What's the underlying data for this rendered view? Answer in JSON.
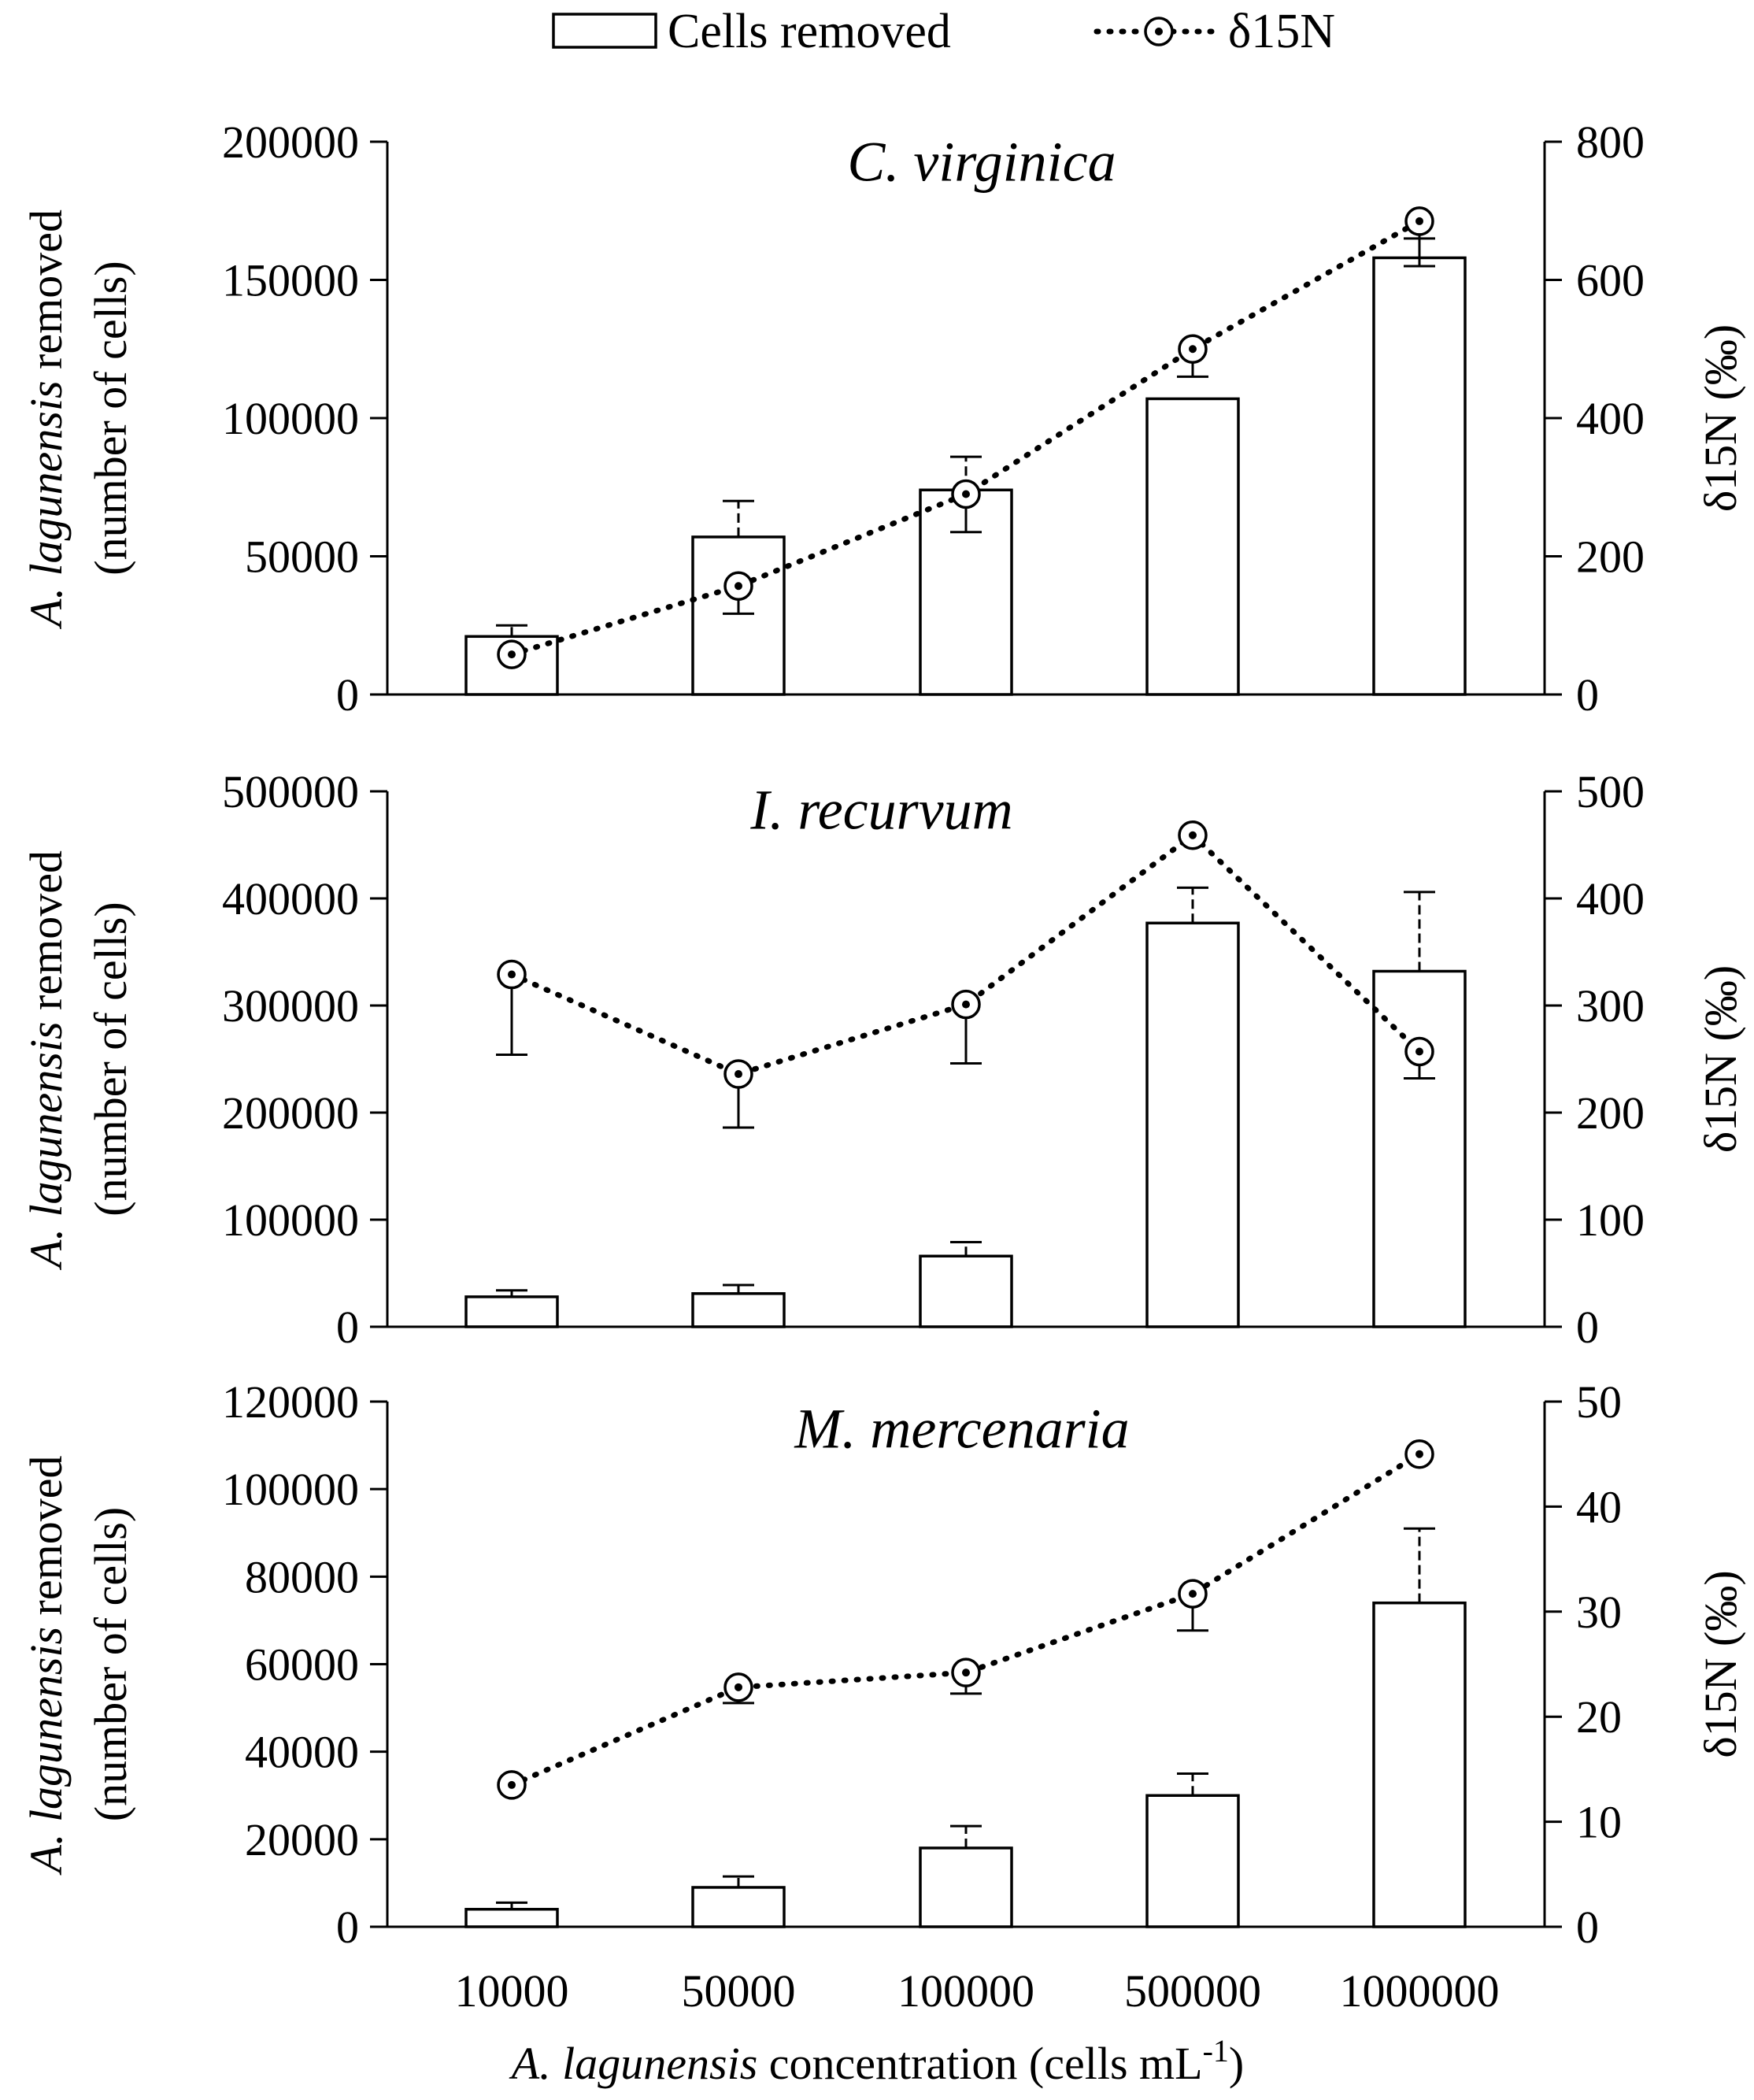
{
  "chart_data": {
    "type": "bar",
    "legend": {
      "position": "top-center",
      "entries": [
        {
          "id": "bars",
          "label": "Cells removed",
          "kind": "bar"
        },
        {
          "id": "line",
          "label": "δ15N",
          "kind": "dotted-line-circle"
        }
      ]
    },
    "categories": [
      "10000",
      "50000",
      "100000",
      "500000",
      "1000000"
    ],
    "xlabel": {
      "italic": "A. lagunensis",
      "plain": " concentration (cells mL",
      "sup": "-1",
      "close": ")"
    },
    "ylabel_left": {
      "italic": "A. lagunensis",
      "plain": " removed",
      "line2": "(number of cells)"
    },
    "ylabel_right": "δ15N (‰)",
    "panels": [
      {
        "title": "C. virginica",
        "left_ticks": [
          "0",
          "50000",
          "100000",
          "150000",
          "200000"
        ],
        "left_ylim": [
          0,
          200000
        ],
        "right_ticks": [
          "0",
          "200",
          "400",
          "600",
          "800"
        ],
        "right_ylim": [
          0,
          800
        ],
        "series": [
          {
            "name": "Cells removed",
            "values": [
              21000,
              57000,
              74000,
              107000,
              158000
            ],
            "error": [
              4000,
              13000,
              12000,
              0,
              7000
            ]
          },
          {
            "name": "δ15N",
            "values": [
              58,
              157,
              290,
              500,
              685
            ],
            "error": [
              0,
              40,
              55,
              40,
              65
            ]
          }
        ]
      },
      {
        "title": "I. recurvum",
        "left_ticks": [
          "0",
          "100000",
          "200000",
          "300000",
          "400000",
          "500000"
        ],
        "left_ylim": [
          0,
          500000
        ],
        "right_ticks": [
          "0",
          "100",
          "200",
          "300",
          "400",
          "500"
        ],
        "right_ylim": [
          0,
          500
        ],
        "series": [
          {
            "name": "Cells removed",
            "values": [
              28000,
              31000,
              66000,
              377000,
              332000
            ],
            "error": [
              6000,
              8000,
              13000,
              33000,
              74000
            ]
          },
          {
            "name": "δ15N",
            "values": [
              329,
              236,
              301,
              459,
              257
            ],
            "error": [
              75,
              50,
              55,
              0,
              25
            ]
          }
        ]
      },
      {
        "title": "M. mercenaria",
        "left_ticks": [
          "0",
          "20000",
          "40000",
          "60000",
          "80000",
          "100000",
          "120000"
        ],
        "left_ylim": [
          0,
          120000
        ],
        "right_ticks": [
          "0",
          "10",
          "20",
          "30",
          "40",
          "50"
        ],
        "right_ylim": [
          0,
          50
        ],
        "series": [
          {
            "name": "Cells removed",
            "values": [
              4000,
              9000,
              18000,
              30000,
              74000
            ],
            "error": [
              1500,
              2500,
              5000,
              5000,
              17000
            ]
          },
          {
            "name": "δ15N",
            "values": [
              13.5,
              22.8,
              24.2,
              31.7,
              45
            ],
            "error": [
              0,
              1.5,
              2,
              3.5,
              0
            ]
          }
        ]
      }
    ]
  }
}
